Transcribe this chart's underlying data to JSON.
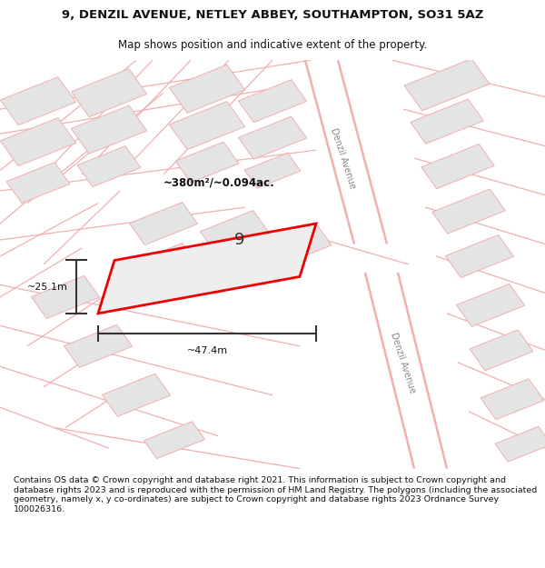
{
  "title_line1": "9, DENZIL AVENUE, NETLEY ABBEY, SOUTHAMPTON, SO31 5AZ",
  "title_line2": "Map shows position and indicative extent of the property.",
  "footer_text": "Contains OS data © Crown copyright and database right 2021. This information is subject to Crown copyright and database rights 2023 and is reproduced with the permission of HM Land Registry. The polygons (including the associated geometry, namely x, y co-ordinates) are subject to Crown copyright and database rights 2023 Ordnance Survey 100026316.",
  "bg_color": "#ffffff",
  "map_bg": "#faf5f5",
  "road_color": "#f0b0b0",
  "building_color": "#e4e4e4",
  "highlight_color": "#ee0000",
  "highlight_fill": "#eeeeee",
  "area_text": "~380m²/~0.094ac.",
  "width_text": "~47.4m",
  "height_text": "~25.1m",
  "number_text": "9",
  "street_label_1": "Denzil Avenue",
  "street_label_2": "Denzil Avenue",
  "title_fontsize": 9.5,
  "subtitle_fontsize": 8.5,
  "footer_fontsize": 6.8,
  "road_lw": 0.9,
  "building_lw": 0.7
}
